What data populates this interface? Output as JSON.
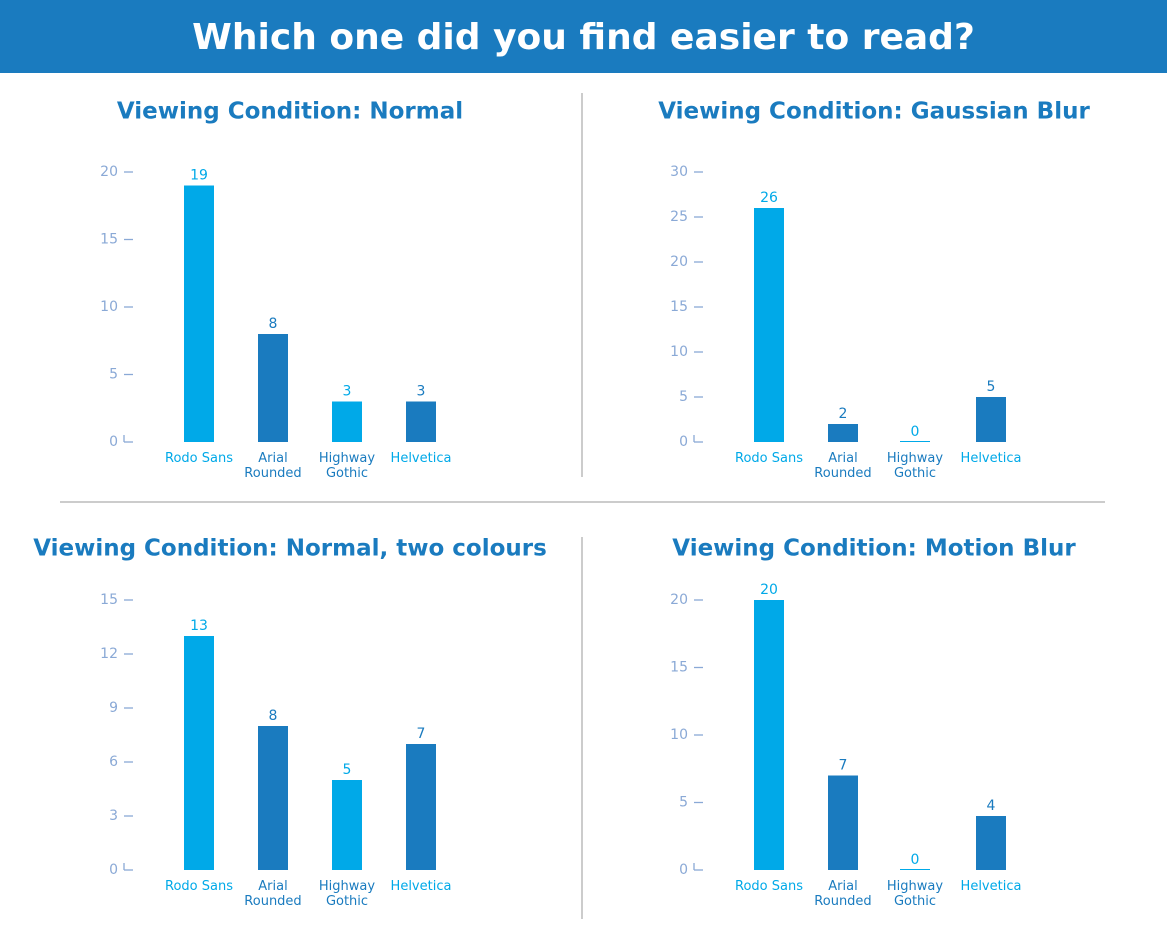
{
  "title": "Which one did you find easier to read?",
  "chart_data": [
    {
      "type": "bar",
      "title": "Viewing Condition: Normal",
      "categories": [
        "Rodo Sans",
        "Arial Rounded",
        "Highway Gothic",
        "Helvetica"
      ],
      "values": [
        19,
        8,
        3,
        3
      ],
      "colors": [
        "#00a9e8",
        "#1a7bbf",
        "#00a9e8",
        "#1a7bbf"
      ],
      "category_colors": [
        "#00a9e8",
        "#1a7bbf",
        "#1a7bbf",
        "#00a9e8"
      ],
      "ylim": [
        0,
        20
      ],
      "yticks": [
        0,
        5,
        10,
        15,
        20
      ]
    },
    {
      "type": "bar",
      "title": "Viewing Condition: Gaussian Blur",
      "categories": [
        "Rodo Sans",
        "Arial Rounded",
        "Highway Gothic",
        "Helvetica"
      ],
      "values": [
        26,
        2,
        0,
        5
      ],
      "colors": [
        "#00a9e8",
        "#1a7bbf",
        "#00a9e8",
        "#1a7bbf"
      ],
      "category_colors": [
        "#00a9e8",
        "#1a7bbf",
        "#1a7bbf",
        "#00a9e8"
      ],
      "ylim": [
        0,
        30
      ],
      "yticks": [
        0,
        5,
        10,
        15,
        20,
        25,
        30
      ]
    },
    {
      "type": "bar",
      "title": "Viewing Condition: Normal, two colours",
      "categories": [
        "Rodo Sans",
        "Arial Rounded",
        "Highway Gothic",
        "Helvetica"
      ],
      "values": [
        13,
        8,
        5,
        7
      ],
      "colors": [
        "#00a9e8",
        "#1a7bbf",
        "#00a9e8",
        "#1a7bbf"
      ],
      "category_colors": [
        "#00a9e8",
        "#1a7bbf",
        "#1a7bbf",
        "#00a9e8"
      ],
      "ylim": [
        0,
        15
      ],
      "yticks": [
        0,
        3,
        6,
        9,
        12,
        15
      ]
    },
    {
      "type": "bar",
      "title": "Viewing Condition: Motion Blur",
      "categories": [
        "Rodo Sans",
        "Arial Rounded",
        "Highway Gothic",
        "Helvetica"
      ],
      "values": [
        20,
        7,
        0,
        4
      ],
      "colors": [
        "#00a9e8",
        "#1a7bbf",
        "#00a9e8",
        "#1a7bbf"
      ],
      "category_colors": [
        "#00a9e8",
        "#1a7bbf",
        "#1a7bbf",
        "#00a9e8"
      ],
      "ylim": [
        0,
        20
      ],
      "yticks": [
        0,
        5,
        10,
        15,
        20
      ]
    }
  ]
}
